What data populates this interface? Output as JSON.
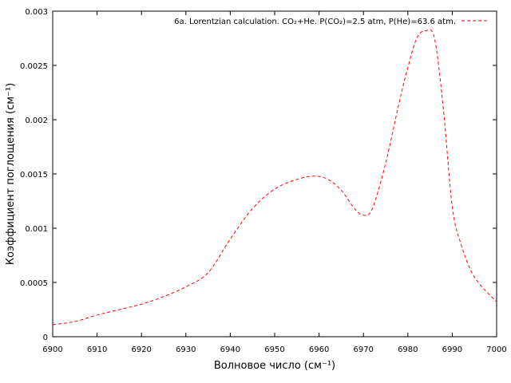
{
  "chart_data": {
    "type": "line",
    "title": "",
    "xlabel": "Волновое число (см⁻¹)",
    "ylabel": "Коэффициент поглощения (см⁻¹)",
    "xlim": [
      6900,
      7000
    ],
    "ylim": [
      0,
      0.003
    ],
    "x_ticks": [
      "6900",
      "6910",
      "6920",
      "6930",
      "6940",
      "6950",
      "6960",
      "6970",
      "6980",
      "6990",
      "7000"
    ],
    "y_ticks": [
      "0",
      "0.0005",
      "0.001",
      "0.0015",
      "0.002",
      "0.0025",
      "0.003"
    ],
    "grid": false,
    "legend_position": "top-right",
    "series": [
      {
        "name": "6a. Lorentzian calculation. CO₂+He.  P(CO₂)=2.5 atm, P(He)=63.6 atm.",
        "color": "#ff0000",
        "style": "dashed",
        "x": [
          6900,
          6905,
          6910,
          6915,
          6920,
          6925,
          6930,
          6935,
          6940,
          6945,
          6950,
          6955,
          6959,
          6962,
          6965,
          6968,
          6970,
          6972,
          6975,
          6978,
          6980,
          6982,
          6984,
          6986,
          6988,
          6990,
          6992,
          6995,
          7000
        ],
        "y": [
          0.00011,
          0.00014,
          0.0002,
          0.00025,
          0.0003,
          0.00037,
          0.00046,
          0.00059,
          0.0009,
          0.00118,
          0.00136,
          0.00145,
          0.00148,
          0.00145,
          0.00135,
          0.00118,
          0.00112,
          0.00118,
          0.0016,
          0.00215,
          0.00248,
          0.00275,
          0.00282,
          0.00275,
          0.0021,
          0.0012,
          0.00085,
          0.00055,
          0.00032
        ]
      }
    ]
  }
}
